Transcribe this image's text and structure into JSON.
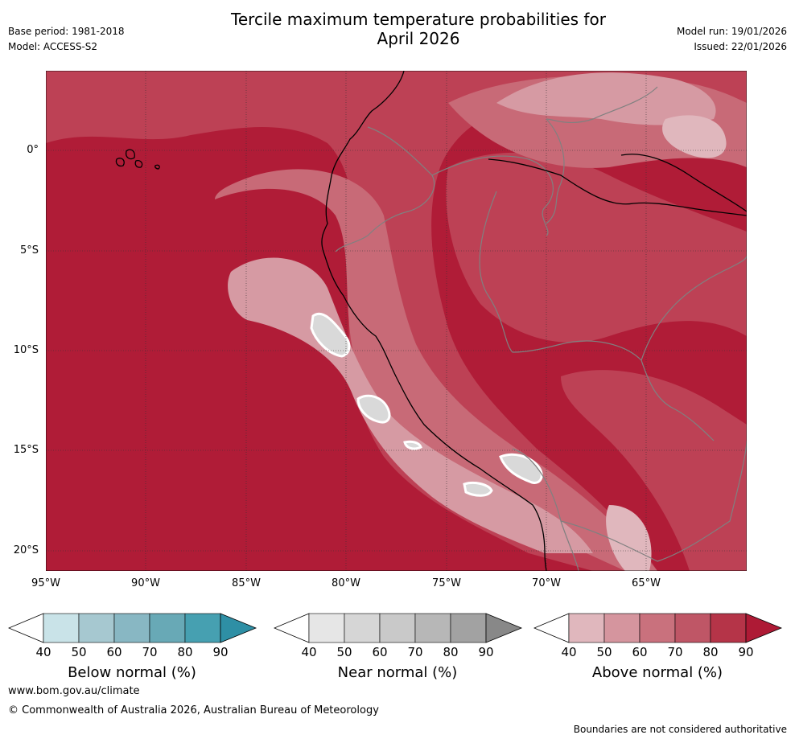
{
  "title_line1": "Tercile maximum temperature probabilities for",
  "title_line2": "April 2026",
  "base_period": "Base period: 1981-2018",
  "model": "Model: ACCESS-S2",
  "model_run": "Model run: 19/01/2026",
  "issued": "Issued: 22/01/2026",
  "map": {
    "lat_ticks": [
      "0°",
      "5°S",
      "10°S",
      "15°S",
      "20°S"
    ],
    "lon_ticks": [
      "95°W",
      "90°W",
      "85°W",
      "80°W",
      "75°W",
      "70°W",
      "65°W"
    ]
  },
  "colorbars": [
    {
      "name": "Below normal (%)",
      "ticks": [
        "40",
        "50",
        "60",
        "70",
        "80",
        "90"
      ],
      "colors": [
        "#c9e3e8",
        "#a6c8d0",
        "#88b7c3",
        "#68a9b6",
        "#46a0b1",
        "#2e8fa5"
      ]
    },
    {
      "name": "Near normal (%)",
      "ticks": [
        "40",
        "50",
        "60",
        "70",
        "80",
        "90"
      ],
      "colors": [
        "#e6e6e6",
        "#d6d6d6",
        "#c9c9c9",
        "#b7b7b7",
        "#a2a2a2",
        "#888888"
      ]
    },
    {
      "name": "Above normal (%)",
      "ticks": [
        "40",
        "50",
        "60",
        "70",
        "80",
        "90"
      ],
      "colors": [
        "#e0b7bd",
        "#d5959e",
        "#c9717d",
        "#bf5666",
        "#b53448",
        "#ae1a35"
      ]
    }
  ],
  "footer": {
    "url": "www.bom.gov.au/climate",
    "copyright": "© Commonwealth of Australia 2026, Australian Bureau of Meteorology",
    "disclaimer": "Boundaries are not considered authoritative"
  }
}
